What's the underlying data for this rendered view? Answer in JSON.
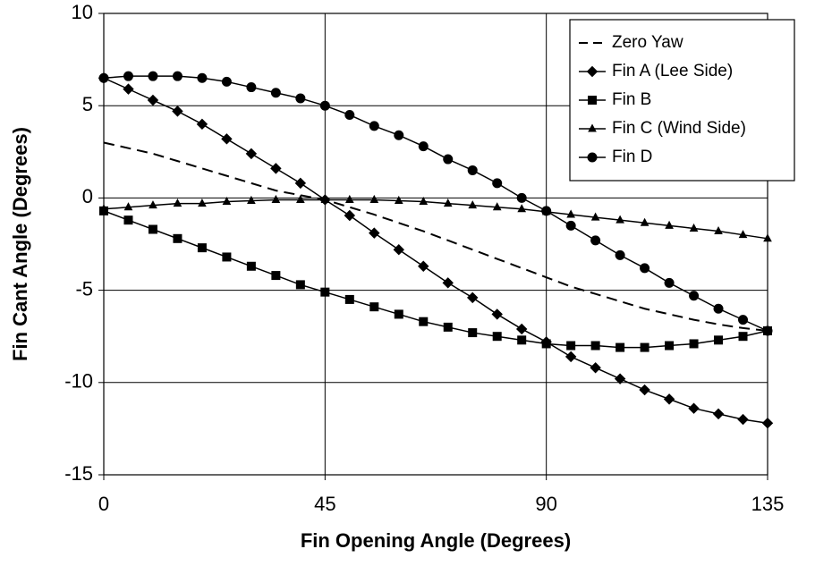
{
  "chart_data": {
    "type": "line",
    "x_label": "Fin Opening Angle (Degrees)",
    "y_label": "Fin Cant Angle  (Degrees)",
    "x": [
      0,
      5,
      10,
      15,
      20,
      25,
      30,
      35,
      40,
      45,
      50,
      55,
      60,
      65,
      70,
      75,
      80,
      85,
      90,
      95,
      100,
      105,
      110,
      115,
      120,
      125,
      130,
      135
    ],
    "xlim": [
      0,
      135
    ],
    "xticks": [
      0,
      45,
      90,
      135
    ],
    "ylim": [
      -15,
      10
    ],
    "yticks": [
      -15,
      -10,
      -5,
      0,
      5,
      10
    ],
    "grid": true,
    "legend": "upper right",
    "series": [
      {
        "name": "Zero Yaw",
        "color": "#000000",
        "style": "dashed",
        "marker": "none",
        "values": [
          3.0,
          2.7,
          2.4,
          2.0,
          1.6,
          1.2,
          0.8,
          0.4,
          0.15,
          -0.1,
          -0.5,
          -0.9,
          -1.35,
          -1.8,
          -2.3,
          -2.8,
          -3.3,
          -3.8,
          -4.3,
          -4.8,
          -5.2,
          -5.6,
          -6.0,
          -6.3,
          -6.6,
          -6.85,
          -7.05,
          -7.2
        ]
      },
      {
        "name": "Fin A (Lee Side)",
        "color": "#000000",
        "style": "solid",
        "marker": "diamond",
        "values": [
          6.5,
          5.9,
          5.3,
          4.7,
          4.0,
          3.2,
          2.4,
          1.6,
          0.8,
          -0.1,
          -0.95,
          -1.9,
          -2.8,
          -3.7,
          -4.6,
          -5.4,
          -6.3,
          -7.1,
          -7.8,
          -8.6,
          -9.2,
          -9.8,
          -10.4,
          -10.9,
          -11.4,
          -11.7,
          -12.0,
          -12.2
        ]
      },
      {
        "name": "Fin B",
        "color": "#000000",
        "style": "solid",
        "marker": "square",
        "values": [
          -0.7,
          -1.2,
          -1.7,
          -2.2,
          -2.7,
          -3.2,
          -3.7,
          -4.2,
          -4.7,
          -5.1,
          -5.5,
          -5.9,
          -6.3,
          -6.7,
          -7.0,
          -7.3,
          -7.5,
          -7.7,
          -7.9,
          -8.0,
          -8.0,
          -8.1,
          -8.1,
          -8.0,
          -7.9,
          -7.7,
          -7.5,
          -7.2
        ]
      },
      {
        "name": "Fin C (Wind Side)",
        "color": "#000000",
        "style": "solid",
        "marker": "triangle",
        "values": [
          -0.6,
          -0.5,
          -0.4,
          -0.3,
          -0.3,
          -0.2,
          -0.15,
          -0.1,
          -0.1,
          -0.1,
          -0.1,
          -0.1,
          -0.15,
          -0.2,
          -0.3,
          -0.4,
          -0.5,
          -0.6,
          -0.75,
          -0.9,
          -1.05,
          -1.2,
          -1.35,
          -1.5,
          -1.65,
          -1.8,
          -2.0,
          -2.2
        ]
      },
      {
        "name": "Fin D",
        "color": "#000000",
        "style": "solid",
        "marker": "circle",
        "values": [
          6.5,
          6.6,
          6.6,
          6.6,
          6.5,
          6.3,
          6.0,
          5.7,
          5.4,
          5.0,
          4.5,
          3.9,
          3.4,
          2.8,
          2.1,
          1.5,
          0.8,
          0.0,
          -0.7,
          -1.5,
          -2.3,
          -3.1,
          -3.8,
          -4.6,
          -5.3,
          -6.0,
          -6.6,
          -7.2
        ]
      }
    ]
  }
}
